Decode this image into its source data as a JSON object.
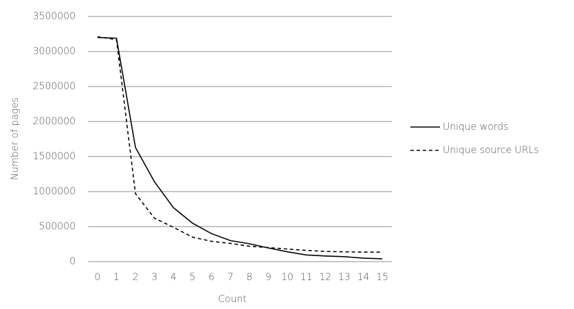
{
  "chart_data": {
    "type": "line",
    "x_label": "Count",
    "y_label": "Number of pages",
    "categories": [
      "0",
      "1",
      "2",
      "3",
      "4",
      "5",
      "6",
      "7",
      "8",
      "9",
      "10",
      "11",
      "12",
      "13",
      "14",
      "15"
    ],
    "series": [
      {
        "name": "Unique words",
        "color": "#000000",
        "line_style": "solid",
        "values": [
          3200000,
          3190000,
          1630000,
          1140000,
          770000,
          550000,
          400000,
          300000,
          255000,
          195000,
          140000,
          95000,
          80000,
          70000,
          50000,
          40000
        ]
      },
      {
        "name": "Unique source URLs",
        "color": "#000000",
        "line_style": "dashed",
        "values": [
          3210000,
          3170000,
          970000,
          620000,
          490000,
          350000,
          290000,
          260000,
          220000,
          200000,
          180000,
          160000,
          145000,
          140000,
          135000,
          135000
        ]
      }
    ],
    "ylim": [
      0,
      3500000
    ],
    "yticks": [
      0,
      500000,
      1000000,
      1500000,
      2000000,
      2500000,
      3000000,
      3500000
    ],
    "grid": true,
    "legend": "right"
  }
}
